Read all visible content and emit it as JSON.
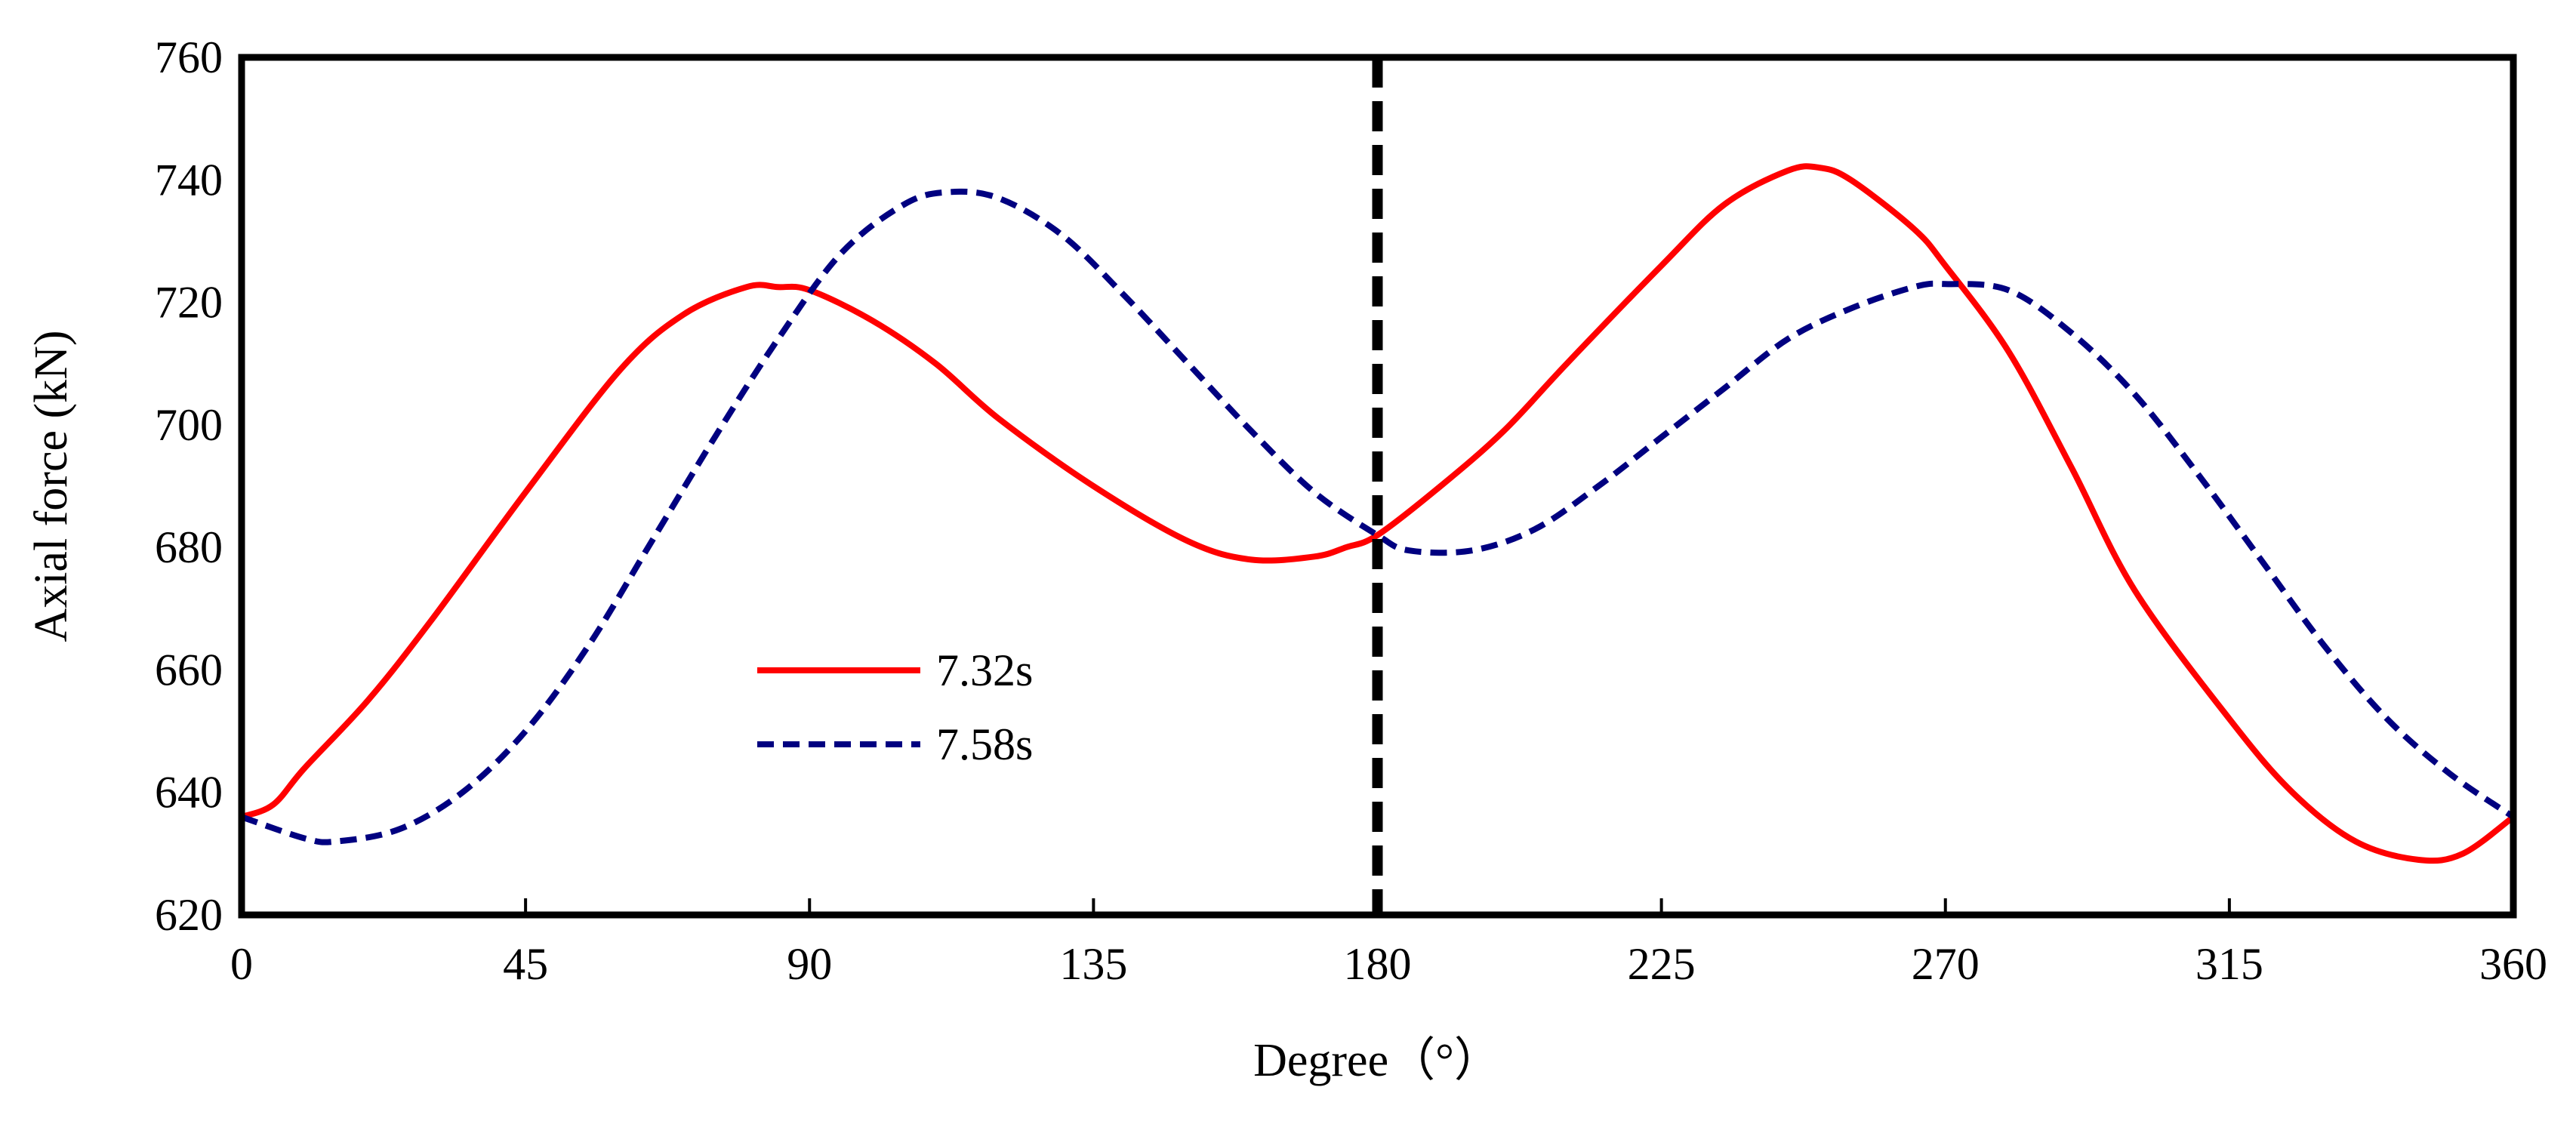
{
  "chart_data": {
    "type": "line",
    "title": "",
    "xlabel": "Degree（°）",
    "ylabel": "Axial force (kN)",
    "xlim": [
      0,
      360
    ],
    "ylim": [
      620,
      760
    ],
    "xticks": [
      "0",
      "45",
      "90",
      "135",
      "180",
      "225",
      "270",
      "315",
      "360"
    ],
    "yticks": [
      "620",
      "640",
      "660",
      "680",
      "700",
      "720",
      "740",
      "760"
    ],
    "grid": false,
    "legend_position": "center-left",
    "reference_line": {
      "x": 180,
      "style": "dashed",
      "color": "#000000"
    },
    "series": [
      {
        "name": "7.32s",
        "color": "#ff0000",
        "style": "solid",
        "x": [
          0,
          5,
          10,
          20,
          30,
          45,
          60,
          70,
          80,
          85,
          90,
          100,
          110,
          120,
          135,
          150,
          160,
          170,
          175,
          180,
          190,
          200,
          210,
          225,
          235,
          245,
          250,
          255,
          265,
          270,
          280,
          290,
          300,
          315,
          325,
          335,
          345,
          352,
          360
        ],
        "y": [
          636,
          638,
          644,
          655,
          668,
          689,
          709,
          718,
          722.5,
          722.5,
          722,
          717,
          710,
          701,
          690,
          681,
          678,
          678.5,
          680,
          682,
          690,
          699,
          710,
          726,
          736,
          741.5,
          742,
          740,
          732,
          726,
          712,
          693,
          673,
          652,
          640,
          632,
          629,
          630,
          636
        ]
      },
      {
        "name": "7.58s",
        "color": "#000080",
        "style": "dashed",
        "x": [
          0,
          10,
          15,
          25,
          35,
          45,
          55,
          65,
          75,
          85,
          95,
          105,
          112,
          120,
          130,
          140,
          150,
          160,
          170,
          180,
          185,
          195,
          205,
          215,
          225,
          235,
          245,
          255,
          265,
          270,
          280,
          290,
          300,
          310,
          320,
          330,
          340,
          350,
          360
        ],
        "y": [
          636,
          632.5,
          632,
          634,
          640,
          650,
          664,
          681,
          698,
          714,
          728,
          736,
          738,
          737,
          731,
          721,
          710,
          699,
          689,
          682,
          679.5,
          679.5,
          683,
          690,
          698,
          706,
          714,
          719,
          722.5,
          723,
          722,
          715,
          705,
          692,
          678,
          664,
          652,
          643,
          636
        ]
      }
    ]
  }
}
